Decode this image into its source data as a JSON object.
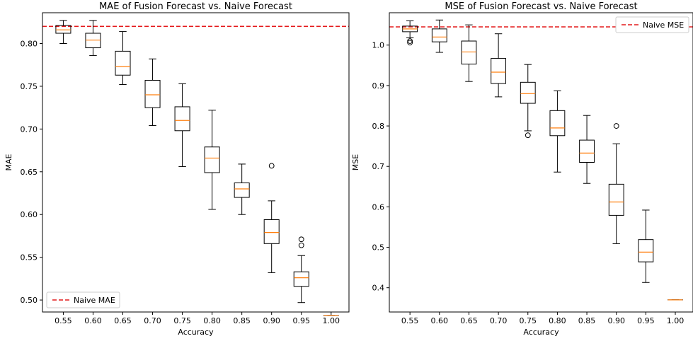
{
  "chart_data": [
    {
      "type": "box",
      "title": "MAE of Fusion Forecast vs. Naive Forecast",
      "xlabel": "Accuracy",
      "ylabel": "MAE",
      "categories": [
        "0.55",
        "0.60",
        "0.65",
        "0.70",
        "0.75",
        "0.80",
        "0.85",
        "0.90",
        "0.95",
        "1.00"
      ],
      "yticks": [
        "0.50",
        "0.55",
        "0.60",
        "0.65",
        "0.70",
        "0.75",
        "0.80"
      ],
      "ylim": [
        0.486,
        0.836
      ],
      "boxes": [
        {
          "whislo": 0.8,
          "q1": 0.812,
          "med": 0.816,
          "q3": 0.821,
          "whishi": 0.827,
          "fliers": []
        },
        {
          "whislo": 0.786,
          "q1": 0.795,
          "med": 0.804,
          "q3": 0.812,
          "whishi": 0.827,
          "fliers": []
        },
        {
          "whislo": 0.752,
          "q1": 0.763,
          "med": 0.773,
          "q3": 0.791,
          "whishi": 0.814,
          "fliers": []
        },
        {
          "whislo": 0.704,
          "q1": 0.725,
          "med": 0.74,
          "q3": 0.757,
          "whishi": 0.782,
          "fliers": []
        },
        {
          "whislo": 0.656,
          "q1": 0.698,
          "med": 0.71,
          "q3": 0.726,
          "whishi": 0.753,
          "fliers": []
        },
        {
          "whislo": 0.606,
          "q1": 0.649,
          "med": 0.666,
          "q3": 0.679,
          "whishi": 0.722,
          "fliers": []
        },
        {
          "whislo": 0.6,
          "q1": 0.62,
          "med": 0.63,
          "q3": 0.637,
          "whishi": 0.659,
          "fliers": []
        },
        {
          "whislo": 0.532,
          "q1": 0.566,
          "med": 0.579,
          "q3": 0.594,
          "whishi": 0.616,
          "fliers": [
            0.657
          ]
        },
        {
          "whislo": 0.497,
          "q1": 0.516,
          "med": 0.526,
          "q3": 0.533,
          "whishi": 0.552,
          "fliers": [
            0.564,
            0.571
          ]
        },
        {
          "whislo": 0.482,
          "q1": 0.482,
          "med": 0.482,
          "q3": 0.482,
          "whishi": 0.482,
          "fliers": []
        }
      ],
      "reference_line": {
        "label": "Naive MAE",
        "value": 0.82,
        "color": "#e41a1c"
      },
      "legend_position": "lower-left",
      "grid": false
    },
    {
      "type": "box",
      "title": "MSE of Fusion Forecast vs. Naive Forecast",
      "xlabel": "Accuracy",
      "ylabel": "MSE",
      "categories": [
        "0.55",
        "0.60",
        "0.65",
        "0.70",
        "0.75",
        "0.80",
        "0.85",
        "0.90",
        "0.95",
        "1.00"
      ],
      "yticks": [
        "0.4",
        "0.5",
        "0.6",
        "0.7",
        "0.8",
        "0.9",
        "1.0"
      ],
      "ylim": [
        0.34,
        1.08
      ],
      "boxes": [
        {
          "whislo": 1.018,
          "q1": 1.033,
          "med": 1.04,
          "q3": 1.047,
          "whishi": 1.06,
          "fliers": [
            1.006,
            1.01
          ]
        },
        {
          "whislo": 0.982,
          "q1": 1.008,
          "med": 1.02,
          "q3": 1.04,
          "whishi": 1.062,
          "fliers": []
        },
        {
          "whislo": 0.91,
          "q1": 0.953,
          "med": 0.983,
          "q3": 1.01,
          "whishi": 1.05,
          "fliers": []
        },
        {
          "whislo": 0.872,
          "q1": 0.905,
          "med": 0.933,
          "q3": 0.967,
          "whishi": 1.028,
          "fliers": []
        },
        {
          "whislo": 0.788,
          "q1": 0.856,
          "med": 0.88,
          "q3": 0.908,
          "whishi": 0.952,
          "fliers": [
            0.777
          ]
        },
        {
          "whislo": 0.686,
          "q1": 0.776,
          "med": 0.795,
          "q3": 0.838,
          "whishi": 0.887,
          "fliers": []
        },
        {
          "whislo": 0.658,
          "q1": 0.71,
          "med": 0.733,
          "q3": 0.765,
          "whishi": 0.826,
          "fliers": []
        },
        {
          "whislo": 0.509,
          "q1": 0.579,
          "med": 0.612,
          "q3": 0.656,
          "whishi": 0.756,
          "fliers": [
            0.8
          ]
        },
        {
          "whislo": 0.413,
          "q1": 0.464,
          "med": 0.488,
          "q3": 0.519,
          "whishi": 0.592,
          "fliers": []
        },
        {
          "whislo": 0.37,
          "q1": 0.37,
          "med": 0.37,
          "q3": 0.37,
          "whishi": 0.37,
          "fliers": []
        }
      ],
      "reference_line": {
        "label": "Naive MSE",
        "value": 1.045,
        "color": "#e41a1c"
      },
      "legend_position": "upper-right",
      "grid": false
    }
  ],
  "colors": {
    "box": "#000000",
    "median": "#ff7f0e",
    "reference": "#e41a1c"
  }
}
